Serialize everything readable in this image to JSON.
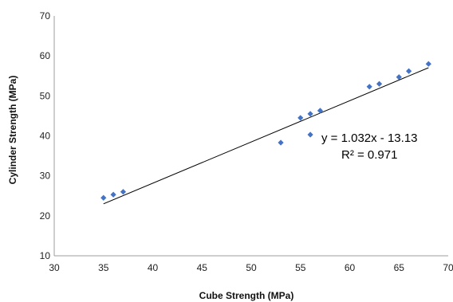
{
  "chart_data": {
    "type": "scatter",
    "title": "",
    "xlabel": "Cube Strength (MPa)",
    "ylabel": "Cylinder Strength (MPa)",
    "xlim": [
      30,
      70
    ],
    "ylim": [
      10,
      70
    ],
    "x_ticks": [
      "30",
      "35",
      "40",
      "45",
      "50",
      "55",
      "60",
      "65",
      "70"
    ],
    "y_ticks": [
      "10",
      "20",
      "30",
      "40",
      "50",
      "60",
      "70"
    ],
    "grid": false,
    "marker_color": "#4472C4",
    "trendline_color": "#000000",
    "series": [
      {
        "points": [
          {
            "x": 35,
            "y": 24.5
          },
          {
            "x": 36,
            "y": 25.3
          },
          {
            "x": 37,
            "y": 26.0
          },
          {
            "x": 53,
            "y": 38.3
          },
          {
            "x": 55,
            "y": 44.5
          },
          {
            "x": 56,
            "y": 45.5
          },
          {
            "x": 56,
            "y": 40.3
          },
          {
            "x": 57,
            "y": 46.3
          },
          {
            "x": 62,
            "y": 52.3
          },
          {
            "x": 63,
            "y": 53.0
          },
          {
            "x": 65,
            "y": 54.7
          },
          {
            "x": 66,
            "y": 56.2
          },
          {
            "x": 68,
            "y": 58.0
          }
        ]
      }
    ],
    "trendline": {
      "slope": 1.032,
      "intercept": -13.13,
      "x_range": [
        35,
        68
      ],
      "equation": "y = 1.032x - 13.13",
      "r2": "R² = 0.971"
    }
  }
}
